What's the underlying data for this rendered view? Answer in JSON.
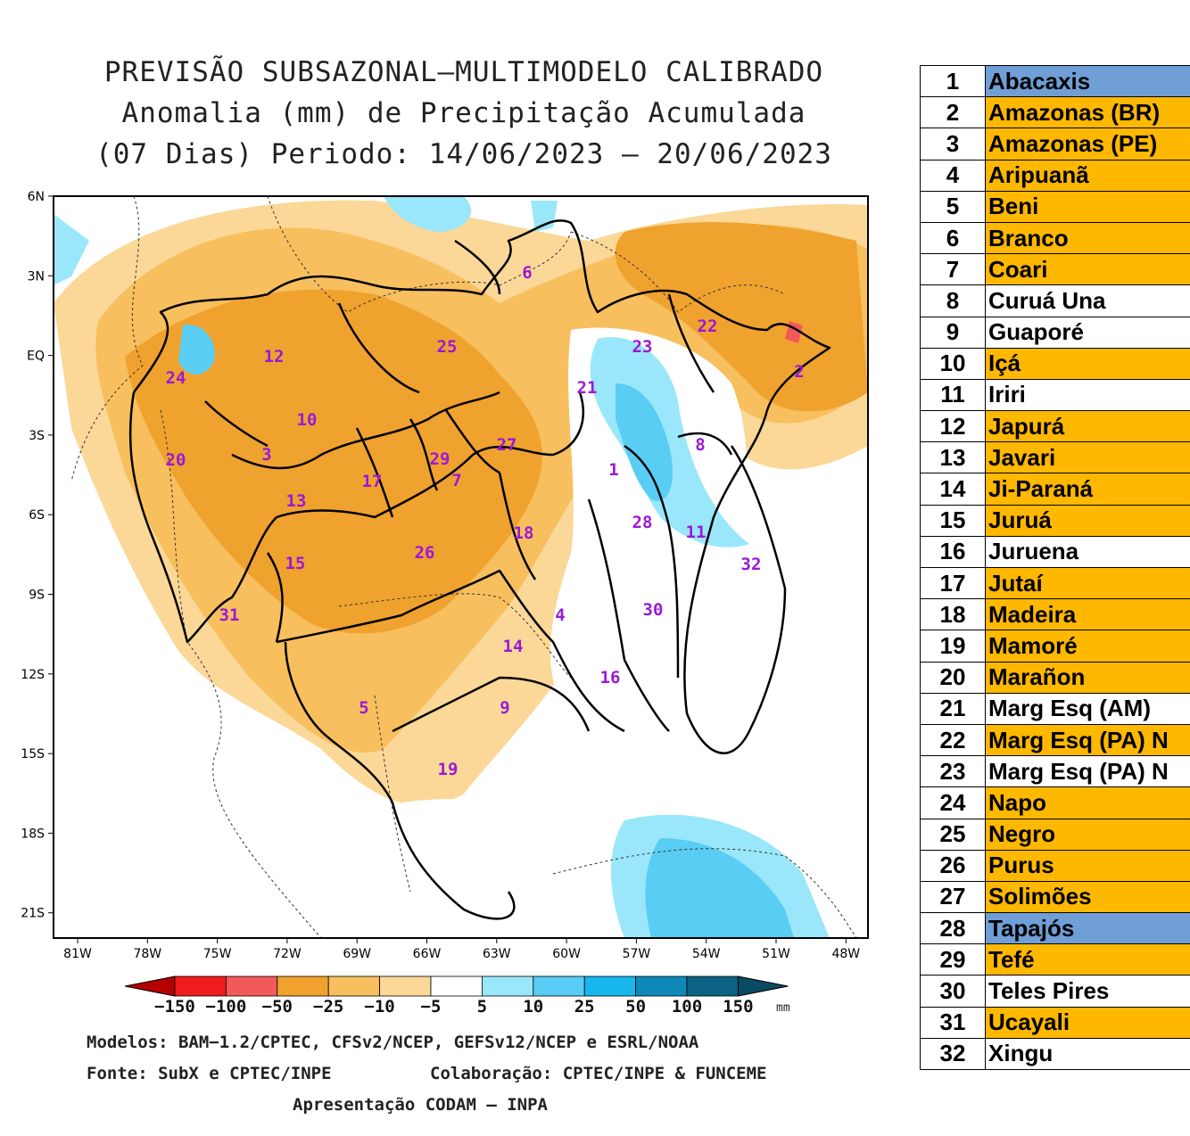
{
  "title": {
    "line1": "PREVISÃO SUBSAZONAL—MULTIMODELO CALIBRADO",
    "line2": "Anomalia (mm) de Precipitação Acumulada",
    "line3": "(07 Dias) Periodo: 14/06/2023 — 20/06/2023"
  },
  "map": {
    "lat_labels": [
      "6N",
      "3N",
      "EQ",
      "3S",
      "6S",
      "9S",
      "12S",
      "15S",
      "18S",
      "21S"
    ],
    "lon_labels": [
      "81W",
      "78W",
      "75W",
      "72W",
      "69W",
      "66W",
      "63W",
      "60W",
      "57W",
      "54W",
      "51W",
      "48W"
    ],
    "basin_numbers": [
      "1",
      "2",
      "3",
      "4",
      "5",
      "6",
      "7",
      "8",
      "9",
      "10",
      "11",
      "12",
      "13",
      "14",
      "15",
      "16",
      "17",
      "18",
      "19",
      "20",
      "21",
      "22",
      "23",
      "24",
      "25",
      "26",
      "27",
      "28",
      "29",
      "30",
      "31",
      "32"
    ]
  },
  "legend": {
    "labels": [
      "−150",
      "−100",
      "−50",
      "−25",
      "−10",
      "−5",
      "5",
      "10",
      "25",
      "50",
      "100",
      "150"
    ],
    "unit": "mm",
    "colors": [
      "#b30000",
      "#ee1c1c",
      "#f25a5a",
      "#f0a22e",
      "#f7bf5e",
      "#fbd898",
      "#ffffff",
      "#9ae7fb",
      "#59cdf4",
      "#17b7ee",
      "#0d89b8",
      "#0b6283",
      "#074a61"
    ]
  },
  "credits": {
    "models": "Modelos: BAM−1.2/CPTEC, CFSv2/NCEP, GEFSv12/NCEP e ESRL/NOAA",
    "source": "Fonte: SubX e CPTEC/INPE",
    "collab": "Colaboração: CPTEC/INPE & FUNCEME",
    "presentation": "Apresentação CODAM — INPA"
  },
  "basins": [
    {
      "num": "1",
      "name": "Abacaxis",
      "color": "#6f9fd6"
    },
    {
      "num": "2",
      "name": "Amazonas (BR)",
      "color": "#ffb800"
    },
    {
      "num": "3",
      "name": "Amazonas (PE)",
      "color": "#ffb800"
    },
    {
      "num": "4",
      "name": "Aripuanã",
      "color": "#ffb800"
    },
    {
      "num": "5",
      "name": "Beni",
      "color": "#ffb800"
    },
    {
      "num": "6",
      "name": "Branco",
      "color": "#ffb800"
    },
    {
      "num": "7",
      "name": "Coari",
      "color": "#ffb800"
    },
    {
      "num": "8",
      "name": "Curuá Una",
      "color": "#ffffff"
    },
    {
      "num": "9",
      "name": "Guaporé",
      "color": "#ffffff"
    },
    {
      "num": "10",
      "name": "Içá",
      "color": "#ffb800"
    },
    {
      "num": "11",
      "name": "Iriri",
      "color": "#ffffff"
    },
    {
      "num": "12",
      "name": "Japurá",
      "color": "#ffb800"
    },
    {
      "num": "13",
      "name": "Javari",
      "color": "#ffb800"
    },
    {
      "num": "14",
      "name": "Ji-Paraná",
      "color": "#ffb800"
    },
    {
      "num": "15",
      "name": "Juruá",
      "color": "#ffb800"
    },
    {
      "num": "16",
      "name": "Juruena",
      "color": "#ffffff"
    },
    {
      "num": "17",
      "name": "Jutaí",
      "color": "#ffb800"
    },
    {
      "num": "18",
      "name": "Madeira",
      "color": "#ffb800"
    },
    {
      "num": "19",
      "name": "Mamoré",
      "color": "#ffb800"
    },
    {
      "num": "20",
      "name": "Marañon",
      "color": "#ffb800"
    },
    {
      "num": "21",
      "name": "Marg Esq (AM)",
      "color": "#ffffff"
    },
    {
      "num": "22",
      "name": "Marg Esq (PA) N",
      "color": "#ffb800"
    },
    {
      "num": "23",
      "name": "Marg Esq (PA) N",
      "color": "#ffffff"
    },
    {
      "num": "24",
      "name": "Napo",
      "color": "#ffb800"
    },
    {
      "num": "25",
      "name": "Negro",
      "color": "#ffb800"
    },
    {
      "num": "26",
      "name": "Purus",
      "color": "#ffb800"
    },
    {
      "num": "27",
      "name": "Solimões",
      "color": "#ffb800"
    },
    {
      "num": "28",
      "name": "Tapajós",
      "color": "#6f9fd6"
    },
    {
      "num": "29",
      "name": "Tefé",
      "color": "#ffb800"
    },
    {
      "num": "30",
      "name": "Teles Pires",
      "color": "#ffffff"
    },
    {
      "num": "31",
      "name": "Ucayali",
      "color": "#ffb800"
    },
    {
      "num": "32",
      "name": "Xingu",
      "color": "#ffffff"
    }
  ]
}
